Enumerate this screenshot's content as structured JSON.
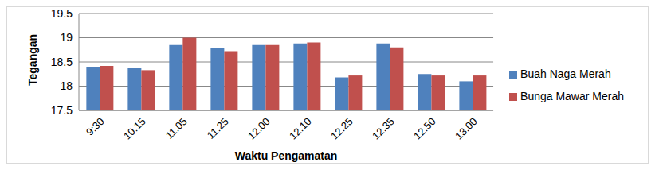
{
  "chart_data": {
    "type": "bar",
    "y_label": "Tegangan",
    "x_label": "Waktu Pengamatan",
    "categories": [
      "9:30",
      "10.15",
      "11.05",
      "11.25",
      "12.00",
      "12.10",
      "12.25",
      "12.35",
      "12.50",
      "13.00"
    ],
    "series": [
      {
        "name": "Buah Naga Merah",
        "color": "#4f81bd",
        "values": [
          18.4,
          18.38,
          18.85,
          18.78,
          18.85,
          18.88,
          18.18,
          18.88,
          18.25,
          18.1
        ]
      },
      {
        "name": "Bunga Mawar Merah",
        "color": "#c0504d",
        "values": [
          18.42,
          18.33,
          19.0,
          18.72,
          18.85,
          18.9,
          18.22,
          18.8,
          18.22,
          18.22
        ]
      }
    ],
    "ylim": [
      17.5,
      19.5
    ],
    "yticks": [
      17.5,
      18,
      18.5,
      19,
      19.5
    ],
    "grid": true,
    "legend": "right"
  }
}
